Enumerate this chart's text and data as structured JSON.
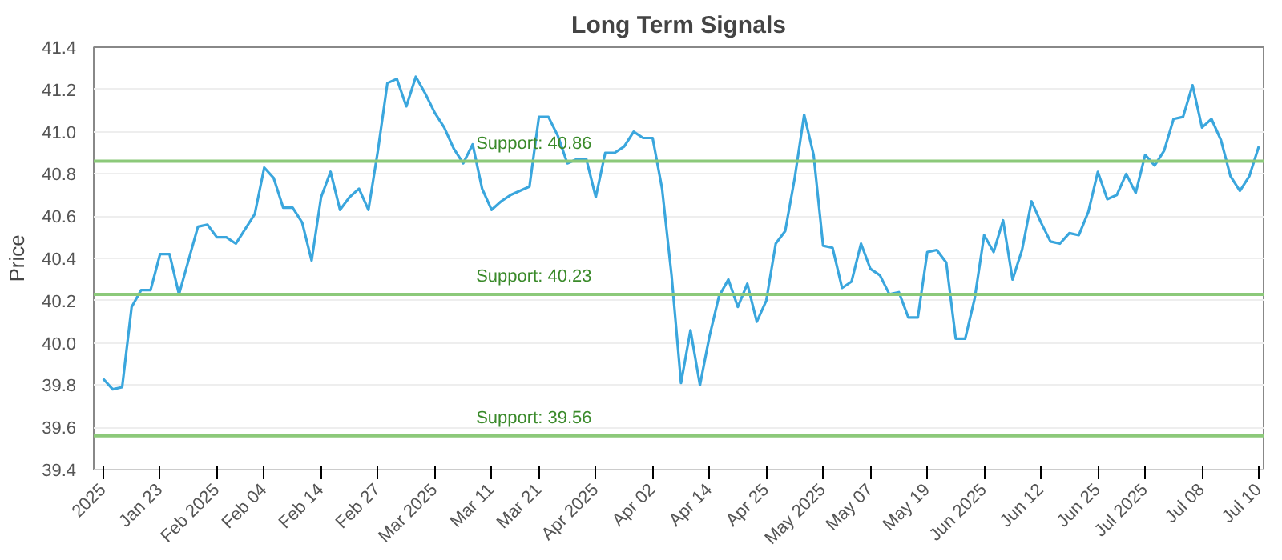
{
  "chart_data": {
    "type": "line",
    "title": "Long Term Signals",
    "ylabel": "Price",
    "categories": [
      "2025",
      null,
      null,
      null,
      null,
      null,
      "Jan 23",
      null,
      null,
      null,
      null,
      null,
      "Feb 2025",
      null,
      null,
      null,
      null,
      "Feb 04",
      null,
      null,
      null,
      null,
      null,
      "Feb 14",
      null,
      null,
      null,
      null,
      null,
      "Feb 27",
      null,
      null,
      null,
      null,
      null,
      "Mar 2025",
      null,
      null,
      null,
      null,
      null,
      "Mar 11",
      null,
      null,
      null,
      null,
      "Mar 21",
      null,
      null,
      null,
      null,
      null,
      "Apr 2025",
      null,
      null,
      null,
      null,
      null,
      "Apr 02",
      null,
      null,
      null,
      null,
      null,
      "Apr 14",
      null,
      null,
      null,
      null,
      null,
      "Apr 25",
      null,
      null,
      null,
      null,
      null,
      "May 2025",
      null,
      null,
      null,
      null,
      "May 07",
      null,
      null,
      null,
      null,
      null,
      "May 19",
      null,
      null,
      null,
      null,
      null,
      "Jun 2025",
      null,
      null,
      null,
      null,
      null,
      "Jun 12",
      null,
      null,
      null,
      null,
      null,
      "Jun 25",
      null,
      null,
      null,
      null,
      "Jul 2025",
      null,
      null,
      null,
      null,
      null,
      "Jul 08",
      null,
      null,
      null,
      null,
      null,
      "Jul 10"
    ],
    "series": [
      {
        "color": "#3aa6dd",
        "values": [
          39.83,
          39.78,
          39.79,
          40.17,
          40.25,
          40.25,
          40.42,
          40.42,
          40.23,
          40.39,
          40.55,
          40.56,
          40.5,
          40.5,
          40.47,
          40.54,
          40.61,
          40.83,
          40.78,
          40.64,
          40.64,
          40.57,
          40.39,
          40.69,
          40.81,
          40.63,
          40.69,
          40.73,
          40.63,
          40.91,
          41.23,
          41.25,
          41.12,
          41.26,
          41.18,
          41.09,
          41.02,
          40.92,
          40.85,
          40.94,
          40.73,
          40.63,
          40.67,
          40.7,
          40.72,
          40.74,
          41.07,
          41.07,
          40.98,
          40.85,
          40.87,
          40.87,
          40.69,
          40.9,
          40.9,
          40.93,
          41.0,
          40.97,
          40.97,
          40.73,
          40.32,
          39.81,
          40.06,
          39.8,
          40.03,
          40.22,
          40.3,
          40.17,
          40.28,
          40.1,
          40.2,
          40.47,
          40.53,
          40.78,
          41.08,
          40.89,
          40.46,
          40.45,
          40.26,
          40.29,
          40.47,
          40.35,
          40.32,
          40.23,
          40.24,
          40.12,
          40.12,
          40.43,
          40.44,
          40.38,
          40.02,
          40.02,
          40.21,
          40.51,
          40.43,
          40.58,
          40.3,
          40.44,
          40.67,
          40.57,
          40.48,
          40.47,
          40.52,
          40.51,
          40.62,
          40.81,
          40.68,
          40.7,
          40.8,
          40.71,
          40.89,
          40.84,
          40.91,
          41.06,
          41.07,
          41.22,
          41.02,
          41.06,
          40.96,
          40.79,
          40.72,
          40.79,
          40.93
        ]
      }
    ],
    "ylim": [
      39.4,
      41.4
    ],
    "yticks": [
      39.4,
      39.6,
      39.8,
      {
        "value": 40.0,
        "label": "40.0"
      },
      40.2,
      40.4,
      40.6,
      40.8,
      {
        "value": 41.0,
        "label": "41.0"
      },
      41.2,
      41.4
    ],
    "grid": "y",
    "marker": "none",
    "line_style": "solid",
    "ref_lines": [
      {
        "axis": "y",
        "value": 40.86,
        "label": "Support: 40.86",
        "color": "#8cc97a"
      },
      {
        "axis": "y",
        "value": 40.23,
        "label": "Support: 40.23",
        "color": "#8cc97a"
      },
      {
        "axis": "y",
        "value": 39.56,
        "label": "Support: 39.56",
        "color": "#8cc97a"
      }
    ]
  }
}
